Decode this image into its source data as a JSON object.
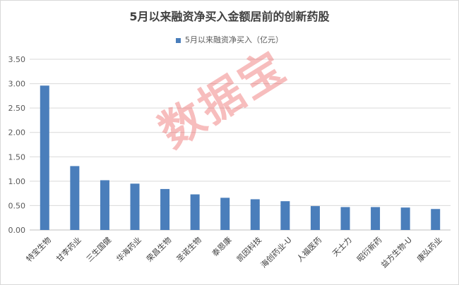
{
  "chart_data": {
    "type": "bar",
    "title": "5月以来融资净买入金额居前的创新药股",
    "xlabel": "",
    "ylabel": "",
    "ylim": [
      0,
      3.5
    ],
    "yticks": [
      "0.00",
      "0.50",
      "1.00",
      "1.50",
      "2.00",
      "2.50",
      "3.00",
      "3.50"
    ],
    "legend_position": "top",
    "grid": true,
    "bar_color": "#4a7ebb",
    "categories": [
      "特宝生物",
      "甘李药业",
      "三生国健",
      "华海药业",
      "荣昌生物",
      "圣诺生物",
      "泰恩康",
      "凯因科技",
      "海创药业-U",
      "人福医药",
      "天士力",
      "昭衍新药",
      "益方生物-U",
      "康弘药业"
    ],
    "series": [
      {
        "name": "5月以来融资净买入（亿元）",
        "values": [
          2.96,
          1.31,
          1.02,
          0.95,
          0.84,
          0.73,
          0.66,
          0.63,
          0.59,
          0.49,
          0.47,
          0.47,
          0.46,
          0.43
        ]
      }
    ]
  },
  "watermark": "数据宝"
}
